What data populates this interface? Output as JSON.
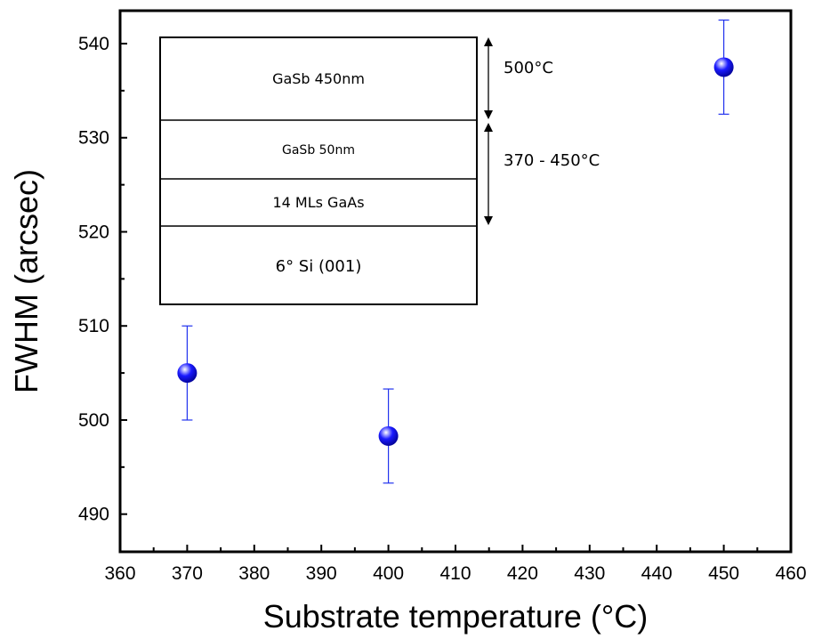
{
  "colors": {
    "marker": "#1a1aff",
    "marker_highlight": "#c8d0ff",
    "errorbar": "#2233ee",
    "axis": "#000000",
    "background": "#ffffff"
  },
  "chart_data": {
    "type": "scatter",
    "xlabel": "Substrate temperature (°C)",
    "ylabel": "FWHM (arcsec)",
    "xlim": [
      360,
      460
    ],
    "ylim": [
      486,
      543.5
    ],
    "xticks": [
      360,
      370,
      380,
      390,
      400,
      410,
      420,
      430,
      440,
      450,
      460
    ],
    "yticks": [
      490,
      500,
      510,
      520,
      530,
      540
    ],
    "grid": false,
    "series": [
      {
        "points": [
          {
            "x": 370,
            "y": 505.0,
            "err": 5.0
          },
          {
            "x": 400,
            "y": 498.3,
            "err": 5.0
          },
          {
            "x": 450,
            "y": 537.5,
            "err": 5.0
          }
        ]
      }
    ],
    "inset": {
      "layers": [
        "GaSb 450nm",
        "GaSb 50nm",
        "14 MLs GaAs",
        "6° Si (001)"
      ],
      "annotations": [
        "500°C",
        "370 - 450°C"
      ]
    }
  }
}
